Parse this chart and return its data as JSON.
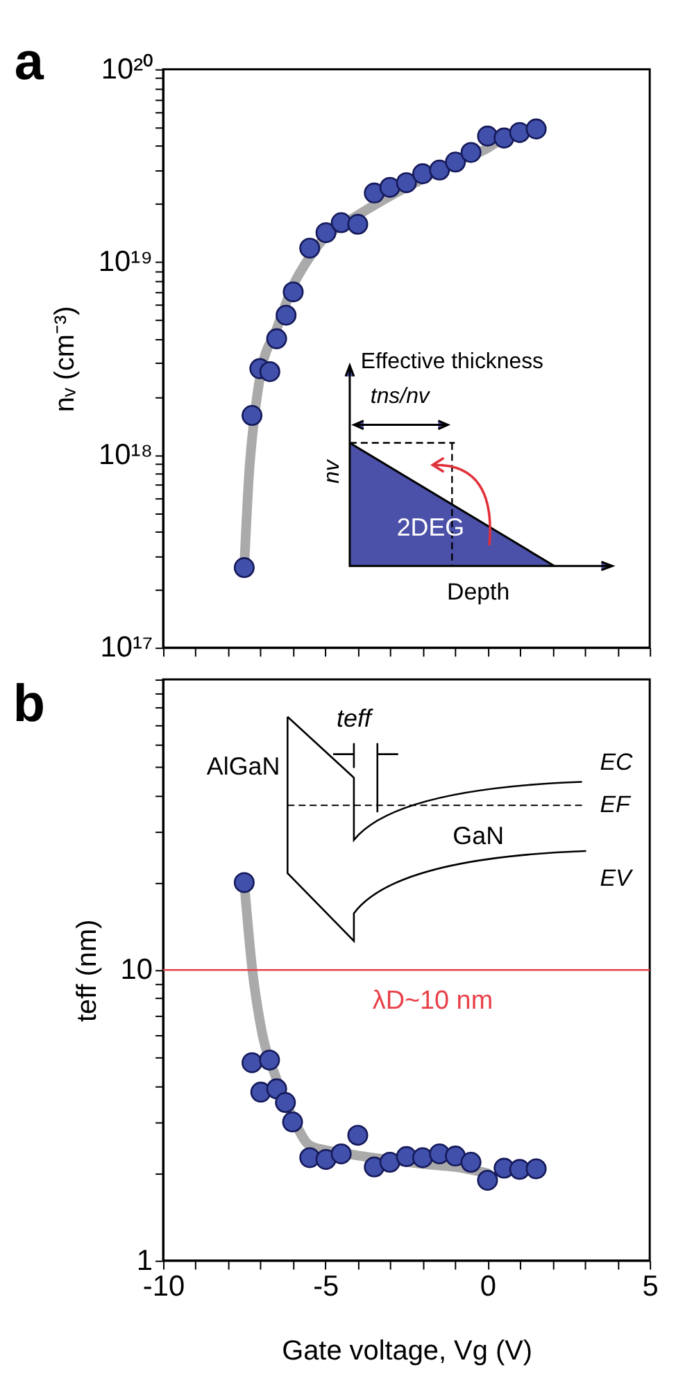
{
  "chart_data": [
    {
      "type": "scatter",
      "ylabel": "nᵥ (cm⁻³)",
      "xlim": [
        -10,
        5
      ],
      "ylim": [
        1e+17,
        1e+20
      ],
      "log": true,
      "tick_labels": "y",
      "grid": false,
      "xticks": [
        -10,
        {
          "value": -9,
          "label": null
        },
        {
          "value": -8,
          "label": null
        },
        {
          "value": -7,
          "label": null
        },
        {
          "value": -6,
          "label": null
        },
        -5,
        {
          "value": -4,
          "label": null
        },
        {
          "value": -3,
          "label": null
        },
        {
          "value": -2,
          "label": null
        },
        {
          "value": -1,
          "label": null
        },
        0,
        {
          "value": 1,
          "label": null
        },
        {
          "value": 2,
          "label": null
        },
        {
          "value": 3,
          "label": null
        },
        {
          "value": 4,
          "label": null
        },
        5
      ],
      "yticks": [
        {
          "value": 1e+17,
          "label": "10¹⁷"
        },
        {
          "value": 2e+17,
          "label": null
        },
        {
          "value": 3e+17,
          "label": null
        },
        {
          "value": 4e+17,
          "label": null
        },
        {
          "value": 5e+17,
          "label": null
        },
        {
          "value": 6e+17,
          "label": null
        },
        {
          "value": 7e+17,
          "label": null
        },
        {
          "value": 8e+17,
          "label": null
        },
        {
          "value": 9e+17,
          "label": null
        },
        {
          "value": 1e+18,
          "label": "10¹⁸"
        },
        {
          "value": 2e+18,
          "label": null
        },
        {
          "value": 3e+18,
          "label": null
        },
        {
          "value": 4e+18,
          "label": null
        },
        {
          "value": 5e+18,
          "label": null
        },
        {
          "value": 6e+18,
          "label": null
        },
        {
          "value": 7e+18,
          "label": null
        },
        {
          "value": 8e+18,
          "label": null
        },
        {
          "value": 9e+18,
          "label": null
        },
        {
          "value": 1e+19,
          "label": "10¹⁹"
        },
        {
          "value": 2e+19,
          "label": null
        },
        {
          "value": 3e+19,
          "label": null
        },
        {
          "value": 4e+19,
          "label": null
        },
        {
          "value": 5e+19,
          "label": null
        },
        {
          "value": 6e+19,
          "label": null
        },
        {
          "value": 7e+19,
          "label": null
        },
        {
          "value": 8e+19,
          "label": null
        },
        {
          "value": 9e+19,
          "label": null
        },
        {
          "value": 1e+20,
          "label": "10²⁰"
        }
      ],
      "annotations": [
        "a",
        "Effective thickness",
        "tns/nv",
        "nv",
        "2DEG",
        "Depth"
      ],
      "series": [
        {
          "type": "line",
          "color": "#aaaaaa",
          "marker": "none",
          "line_style": "solid",
          "x": [
            -7.5,
            -7.35,
            -7.2,
            -7,
            -6.5,
            -6,
            -5.5,
            -5,
            -4.5,
            -4,
            -3,
            -2,
            -1,
            0,
            0.3
          ],
          "values": [
            2.6e+17,
            8e+17,
            1.5e+18,
            2.6e+18,
            4.5e+18,
            7.5e+18,
            1.05e+19,
            1.35e+19,
            1.55e+19,
            1.75e+19,
            2.2e+19,
            2.7e+19,
            3.3e+19,
            3.9e+19,
            4.2e+19
          ]
        },
        {
          "color": "#4150aa",
          "marker": "circle",
          "x": [
            -7.5,
            -7.26,
            -7.02,
            -6.71,
            -6.5,
            -6.21,
            -5.99,
            -5.48,
            -4.98,
            -4.51,
            -4.0,
            -3.49,
            -3.01,
            -2.5,
            -2.0,
            -1.48,
            -0.99,
            -0.51,
            0,
            0.51,
            0.99,
            1.5
          ],
          "values": [
            2.6e+17,
            1.6e+18,
            2.8e+18,
            2.7e+18,
            4e+18,
            5.3e+18,
            7e+18,
            1.18e+19,
            1.42e+19,
            1.6e+19,
            1.57e+19,
            2.28e+19,
            2.44e+19,
            2.58e+19,
            2.87e+19,
            3e+19,
            3.3e+19,
            3.7e+19,
            4.5e+19,
            4.4e+19,
            4.7e+19,
            4.9e+19
          ]
        }
      ]
    },
    {
      "type": "scatter",
      "xlabel": "Gate voltage, Vg (V)",
      "ylabel": "teff (nm)",
      "xlim": [
        -10,
        5
      ],
      "ylim": [
        1,
        100
      ],
      "log": true,
      "grid": false,
      "xticks": [
        -10,
        {
          "value": -9,
          "label": null
        },
        {
          "value": -8,
          "label": null
        },
        {
          "value": -7,
          "label": null
        },
        {
          "value": -6,
          "label": null
        },
        -5,
        {
          "value": -4,
          "label": null
        },
        {
          "value": -3,
          "label": null
        },
        {
          "value": -2,
          "label": null
        },
        {
          "value": -1,
          "label": null
        },
        0,
        {
          "value": 1,
          "label": null
        },
        {
          "value": 2,
          "label": null
        },
        {
          "value": 3,
          "label": null
        },
        {
          "value": 4,
          "label": null
        },
        5
      ],
      "yticks": [
        1,
        {
          "value": 2,
          "label": null
        },
        {
          "value": 3,
          "label": null
        },
        {
          "value": 4,
          "label": null
        },
        {
          "value": 5,
          "label": null
        },
        {
          "value": 6,
          "label": null
        },
        {
          "value": 7,
          "label": null
        },
        {
          "value": 8,
          "label": null
        },
        {
          "value": 9,
          "label": null
        },
        10,
        {
          "value": 20,
          "label": null
        },
        {
          "value": 30,
          "label": null
        },
        {
          "value": 40,
          "label": null
        },
        {
          "value": 50,
          "label": null
        },
        {
          "value": 60,
          "label": null
        },
        {
          "value": 70,
          "label": null
        },
        {
          "value": 80,
          "label": null
        },
        {
          "value": 90,
          "label": null
        },
        {
          "value": 100,
          "label": null
        }
      ],
      "ref_lines": [
        {
          "axis": "y",
          "value": 10,
          "label": "λD~10 nm",
          "color": "#e8414a",
          "line_style": "solid"
        }
      ],
      "annotations": [
        "b",
        "teff",
        "AlGaN",
        "EC",
        "EF",
        "GaN",
        "EV"
      ],
      "series": [
        {
          "type": "line",
          "color": "#aaaaaa",
          "marker": "none",
          "line_style": "solid",
          "x": [
            -7.5,
            -7.25,
            -7,
            -6.5,
            -6,
            -5.5,
            -5,
            -4.5,
            -4,
            -3,
            -2,
            -1,
            0
          ],
          "values": [
            20,
            10,
            6.5,
            4.2,
            3.1,
            2.5,
            2.4,
            2.35,
            2.3,
            2.22,
            2.15,
            2.1,
            2.0
          ]
        },
        {
          "color": "#4150aa",
          "marker": "circle",
          "x": [
            -7.5,
            -7.26,
            -6.72,
            -6.99,
            -6.5,
            -6.23,
            -6.01,
            -5.48,
            -4.98,
            -4.51,
            -4.0,
            -3.49,
            -3.01,
            -2.5,
            -2.0,
            -1.48,
            -0.99,
            -0.51,
            0,
            0.51,
            0.99,
            1.5
          ],
          "values": [
            20,
            4.8,
            4.9,
            3.8,
            3.9,
            3.5,
            3.0,
            2.26,
            2.23,
            2.33,
            2.7,
            2.1,
            2.18,
            2.28,
            2.26,
            2.33,
            2.29,
            2.18,
            1.89,
            2.08,
            2.06,
            2.07
          ]
        }
      ]
    }
  ]
}
